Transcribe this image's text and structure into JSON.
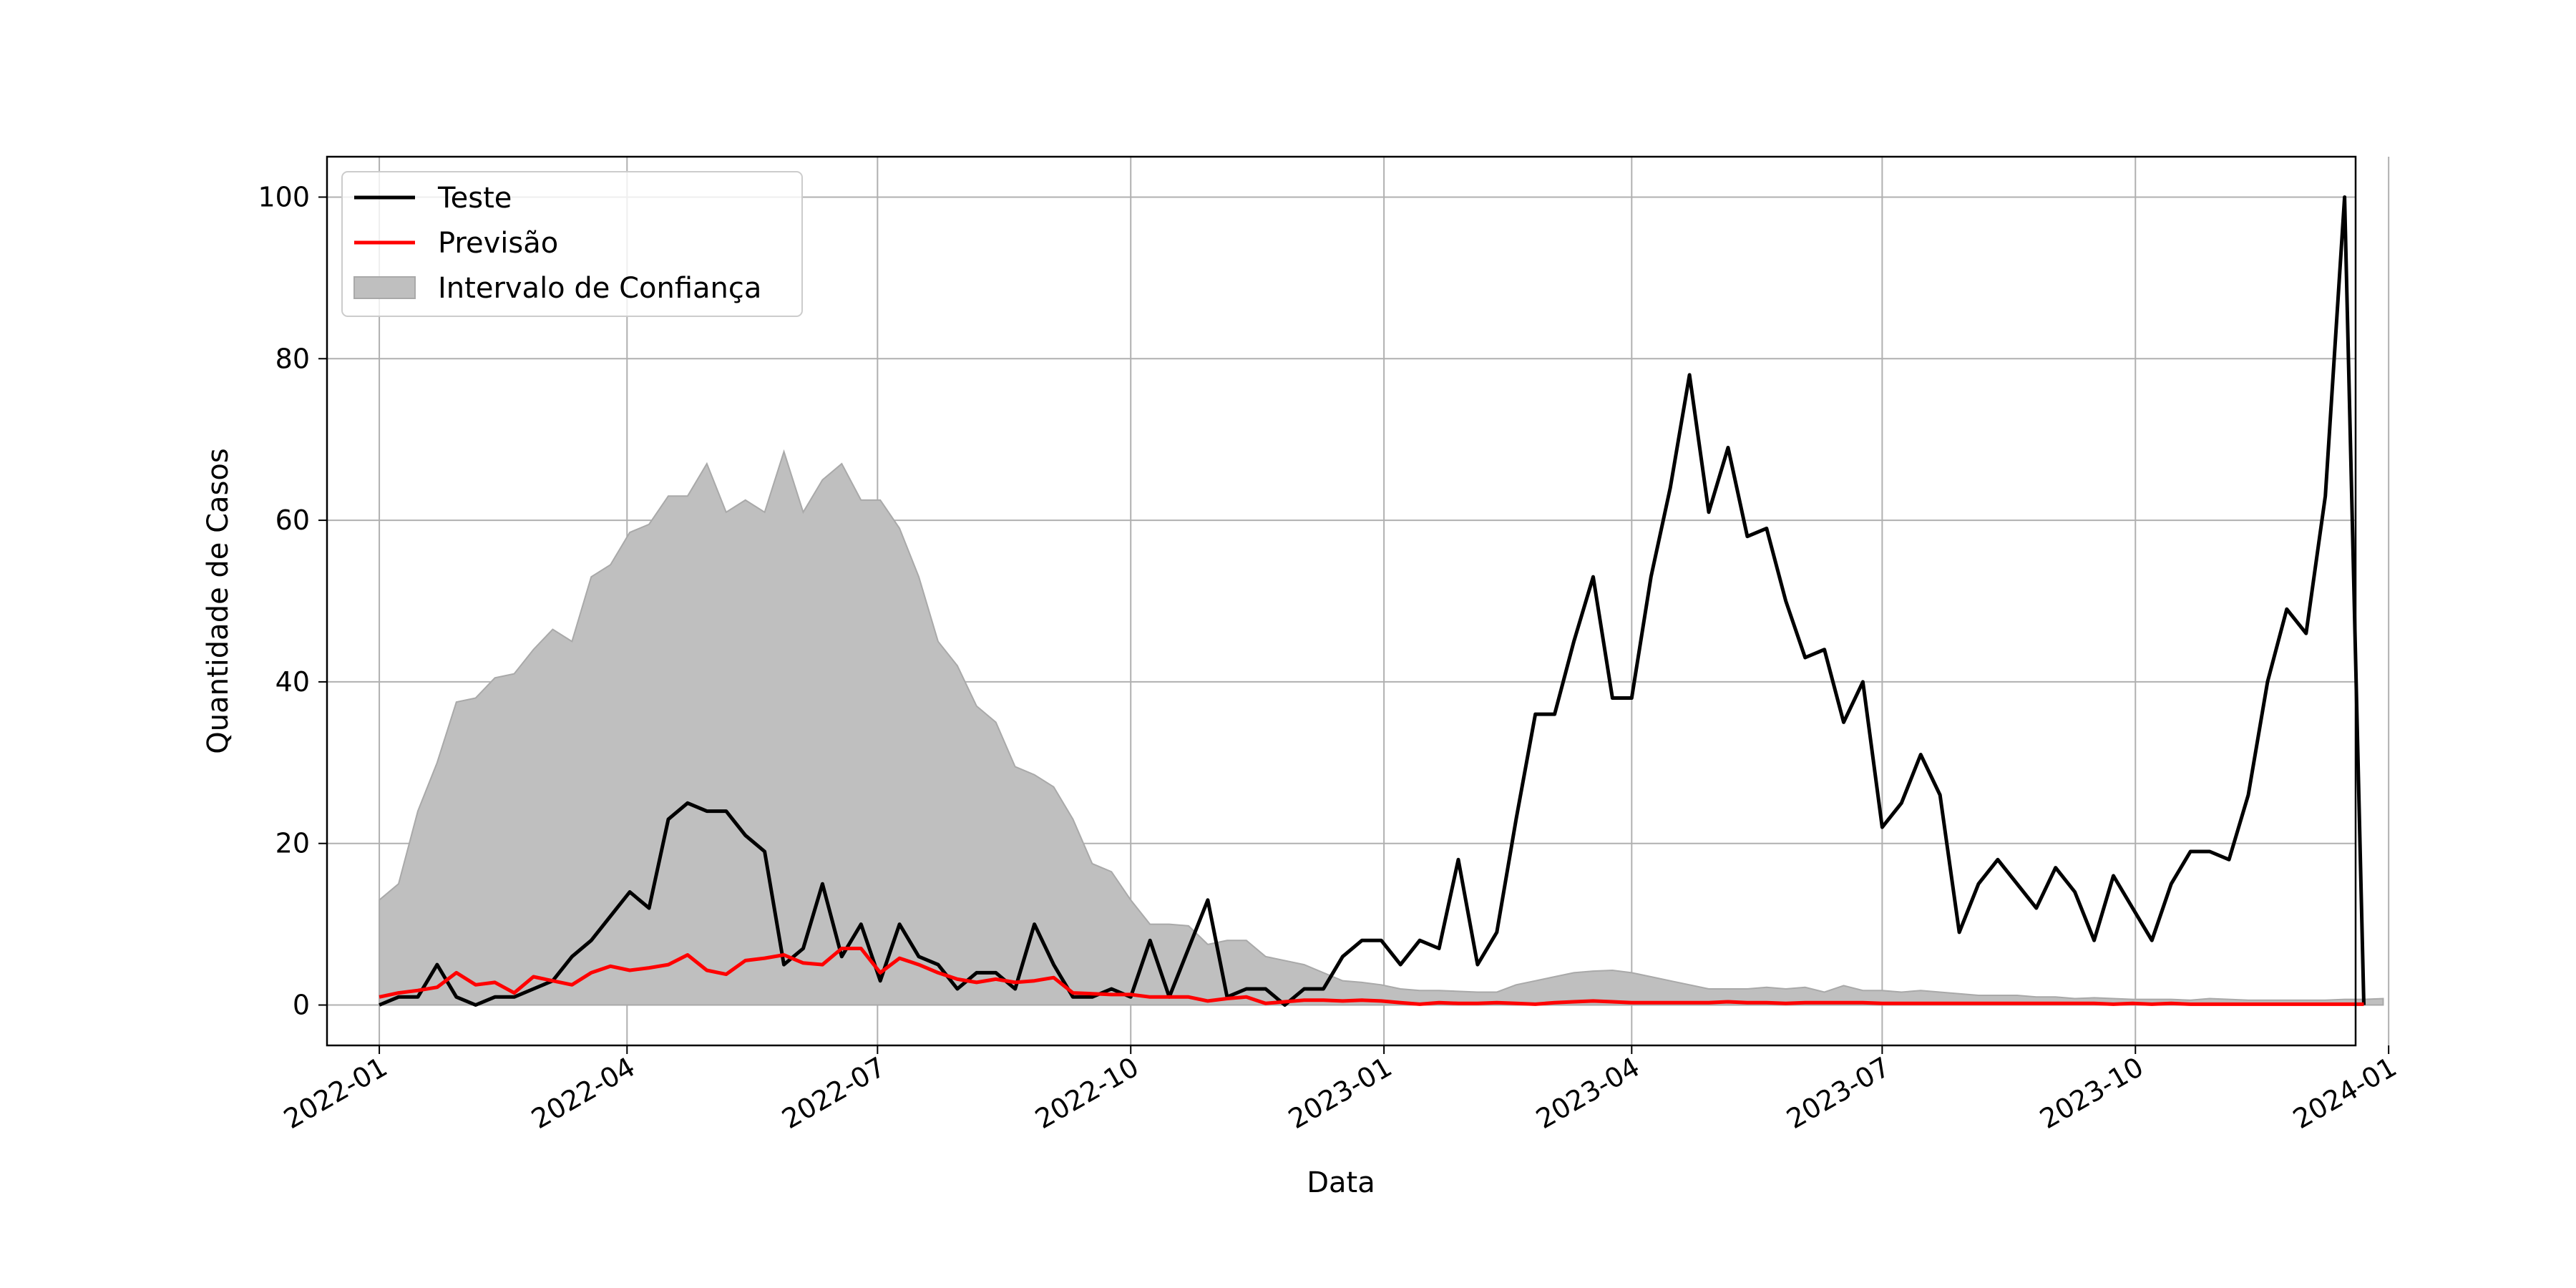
{
  "chart_data": {
    "type": "line",
    "title": "",
    "xlabel": "Data",
    "ylabel": "Quantidade de Casos",
    "xlim_days": [
      -19,
      718
    ],
    "ylim": [
      -5,
      105
    ],
    "grid": true,
    "legend_position": "top-left",
    "x_ticks": [
      {
        "label": "2022-01",
        "day": 0
      },
      {
        "label": "2022-04",
        "day": 90
      },
      {
        "label": "2022-07",
        "day": 181
      },
      {
        "label": "2022-10",
        "day": 273
      },
      {
        "label": "2023-01",
        "day": 365
      },
      {
        "label": "2023-04",
        "day": 455
      },
      {
        "label": "2023-07",
        "day": 546
      },
      {
        "label": "2023-10",
        "day": 638
      },
      {
        "label": "2024-01",
        "day": 730
      }
    ],
    "y_ticks": [
      0,
      20,
      40,
      60,
      80,
      100
    ],
    "x_start_date": "2022-01-01",
    "x_step_days": 7,
    "legend": [
      {
        "label": "Teste",
        "kind": "line",
        "color": "#000000"
      },
      {
        "label": "Previsão",
        "kind": "line",
        "color": "#ff0000"
      },
      {
        "label": "Intervalo  de Confiança",
        "kind": "area",
        "color": "#bfbfbf"
      }
    ],
    "series": [
      {
        "name": "Teste",
        "color": "#000000",
        "values": [
          0,
          1,
          1,
          5,
          1,
          0,
          1,
          1,
          2,
          3,
          6,
          8,
          11,
          14,
          12,
          23,
          25,
          24,
          24,
          21,
          19,
          5,
          7,
          15,
          6,
          10,
          3,
          10,
          6,
          5,
          2,
          4,
          4,
          2,
          10,
          5,
          1,
          1,
          2,
          1,
          8,
          1,
          7,
          13,
          1,
          2,
          2,
          0,
          2,
          2,
          6,
          8,
          8,
          5,
          8,
          7,
          18,
          5,
          9,
          23,
          36,
          36,
          45,
          53,
          38,
          38,
          53,
          64,
          78,
          61,
          69,
          58,
          59,
          50,
          43,
          44,
          35,
          40,
          22,
          25,
          31,
          26,
          9,
          15,
          18,
          15,
          12,
          17,
          14,
          8,
          16,
          12,
          8,
          15,
          19,
          19,
          18,
          26,
          40,
          49,
          46,
          63,
          100,
          0
        ]
      },
      {
        "name": "Previsão",
        "color": "#ff0000",
        "values": [
          1,
          1.5,
          1.8,
          2.2,
          4,
          2.5,
          2.8,
          1.5,
          3.5,
          3,
          2.5,
          4,
          4.8,
          4.3,
          4.6,
          5,
          6.2,
          4.3,
          3.8,
          5.5,
          5.8,
          6.2,
          5.2,
          5,
          7,
          7,
          4,
          5.8,
          5,
          4,
          3.2,
          2.8,
          3.2,
          2.8,
          3,
          3.4,
          1.5,
          1.4,
          1.3,
          1.3,
          1,
          1,
          1,
          0.5,
          0.8,
          1,
          0.2,
          0.4,
          0.6,
          0.6,
          0.5,
          0.6,
          0.5,
          0.3,
          0.1,
          0.3,
          0.2,
          0.2,
          0.3,
          0.2,
          0.1,
          0.3,
          0.4,
          0.5,
          0.4,
          0.3,
          0.3,
          0.3,
          0.3,
          0.3,
          0.4,
          0.3,
          0.3,
          0.2,
          0.3,
          0.3,
          0.3,
          0.3,
          0.2,
          0.2,
          0.2,
          0.2,
          0.2,
          0.2,
          0.2,
          0.2,
          0.2,
          0.2,
          0.2,
          0.2,
          0.1,
          0.2,
          0.1,
          0.2,
          0.1,
          0.1,
          0.1,
          0.1,
          0.1,
          0.1,
          0.1,
          0.1,
          0.1,
          0.1
        ]
      },
      {
        "name": "Intervalo  de Confiança",
        "color": "#bfbfbf",
        "values": [
          13,
          15,
          24,
          30,
          37.5,
          38,
          40.5,
          41,
          44,
          46.5,
          45,
          53,
          54.5,
          58.5,
          59.5,
          63,
          63,
          67,
          61,
          62.5,
          61,
          68.5,
          61,
          65,
          67,
          62.5,
          62.5,
          59,
          53,
          45,
          42,
          37,
          35,
          29.5,
          28.5,
          27,
          23,
          17.5,
          16.5,
          13,
          10,
          10,
          9.8,
          7.5,
          8,
          8,
          6,
          5.5,
          5,
          4,
          3,
          2.8,
          2.5,
          2,
          1.8,
          1.8,
          1.7,
          1.6,
          1.6,
          2.5,
          3,
          3.5,
          4,
          4.2,
          4.3,
          4,
          3.5,
          3,
          2.5,
          2,
          2,
          2,
          2.2,
          2,
          2.2,
          1.6,
          2.4,
          1.8,
          1.8,
          1.6,
          1.8,
          1.6,
          1.4,
          1.2,
          1.2,
          1.2,
          1,
          1,
          0.8,
          0.9,
          0.8,
          0.7,
          0.7,
          0.7,
          0.6,
          0.8,
          0.7,
          0.6,
          0.6,
          0.6,
          0.6,
          0.6,
          0.7,
          0.7,
          0.8
        ]
      }
    ]
  }
}
